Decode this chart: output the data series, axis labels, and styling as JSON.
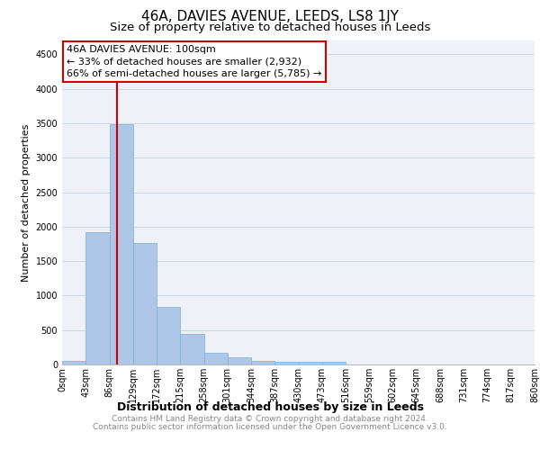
{
  "title": "46A, DAVIES AVENUE, LEEDS, LS8 1JY",
  "subtitle": "Size of property relative to detached houses in Leeds",
  "xlabel": "Distribution of detached houses by size in Leeds",
  "ylabel": "Number of detached properties",
  "bar_color": "#aec6e8",
  "bar_edge_color": "#7bafd4",
  "grid_color": "#d0d8e8",
  "background_color": "#eef2f8",
  "vline_x": 100,
  "vline_color": "#cc0000",
  "annotation_text": "46A DAVIES AVENUE: 100sqm\n← 33% of detached houses are smaller (2,932)\n66% of semi-detached houses are larger (5,785) →",
  "annotation_box_color": "#cc0000",
  "bin_edges": [
    0,
    43,
    86,
    129,
    172,
    215,
    258,
    301,
    344,
    387,
    430,
    473,
    516,
    559,
    602,
    645,
    688,
    731,
    774,
    817,
    860
  ],
  "bar_heights": [
    50,
    1920,
    3490,
    1760,
    840,
    450,
    175,
    100,
    55,
    40,
    35,
    35,
    5,
    3,
    2,
    1,
    1,
    1,
    1,
    1
  ],
  "ylim": [
    0,
    4700
  ],
  "yticks": [
    0,
    500,
    1000,
    1500,
    2000,
    2500,
    3000,
    3500,
    4000,
    4500
  ],
  "tick_labels": [
    "0sqm",
    "43sqm",
    "86sqm",
    "129sqm",
    "172sqm",
    "215sqm",
    "258sqm",
    "301sqm",
    "344sqm",
    "387sqm",
    "430sqm",
    "473sqm",
    "516sqm",
    "559sqm",
    "602sqm",
    "645sqm",
    "688sqm",
    "731sqm",
    "774sqm",
    "817sqm",
    "860sqm"
  ],
  "footer_line1": "Contains HM Land Registry data © Crown copyright and database right 2024.",
  "footer_line2": "Contains public sector information licensed under the Open Government Licence v3.0.",
  "title_fontsize": 11,
  "subtitle_fontsize": 9.5,
  "xlabel_fontsize": 9,
  "ylabel_fontsize": 8,
  "tick_fontsize": 7,
  "footer_fontsize": 6.5,
  "annotation_fontsize": 8
}
